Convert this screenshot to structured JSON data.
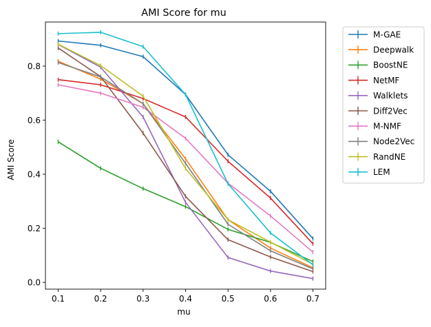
{
  "chart_data": {
    "type": "line",
    "title": "AMI Score for mu",
    "xlabel": "mu",
    "ylabel": "AMI Score",
    "x": [
      0.1,
      0.2,
      0.3,
      0.4,
      0.5,
      0.6,
      0.7
    ],
    "xticks": [
      "0.1",
      "0.2",
      "0.3",
      "0.4",
      "0.5",
      "0.6",
      "0.7"
    ],
    "yticks": [
      "0.0",
      "0.2",
      "0.4",
      "0.6",
      "0.8"
    ],
    "xlim": [
      0.07,
      0.73
    ],
    "ylim": [
      -0.025,
      0.963
    ],
    "grid": false,
    "legend_position": "outside-right",
    "series": [
      {
        "name": "M-GAE",
        "color": "#1f77b4",
        "values": [
          0.893,
          0.877,
          0.835,
          0.695,
          0.472,
          0.337,
          0.162
        ]
      },
      {
        "name": "Deepwalk",
        "color": "#ff7f0e",
        "values": [
          0.818,
          0.752,
          0.661,
          0.457,
          0.232,
          0.127,
          0.054
        ]
      },
      {
        "name": "BoostNE",
        "color": "#2ca02c",
        "values": [
          0.52,
          0.422,
          0.347,
          0.28,
          0.196,
          0.148,
          0.077
        ]
      },
      {
        "name": "NetMF",
        "color": "#d62728",
        "values": [
          0.75,
          0.731,
          0.68,
          0.612,
          0.448,
          0.312,
          0.143
        ]
      },
      {
        "name": "Walklets",
        "color": "#9467bd",
        "values": [
          0.88,
          0.796,
          0.612,
          0.296,
          0.092,
          0.042,
          0.014
        ]
      },
      {
        "name": "Diff2Vec",
        "color": "#8c564b",
        "values": [
          0.867,
          0.761,
          0.552,
          0.318,
          0.158,
          0.094,
          0.04
        ]
      },
      {
        "name": "M-NMF",
        "color": "#e377c2",
        "values": [
          0.731,
          0.7,
          0.648,
          0.533,
          0.367,
          0.246,
          0.112
        ]
      },
      {
        "name": "Node2Vec",
        "color": "#7f7f7f",
        "values": [
          0.813,
          0.76,
          0.661,
          0.44,
          0.215,
          0.117,
          0.05
        ]
      },
      {
        "name": "RandNE",
        "color": "#bcbd22",
        "values": [
          0.881,
          0.802,
          0.689,
          0.421,
          0.232,
          0.149,
          0.067
        ]
      },
      {
        "name": "LEM",
        "color": "#17becf",
        "values": [
          0.92,
          0.925,
          0.872,
          0.695,
          0.365,
          0.183,
          0.065
        ]
      }
    ]
  }
}
